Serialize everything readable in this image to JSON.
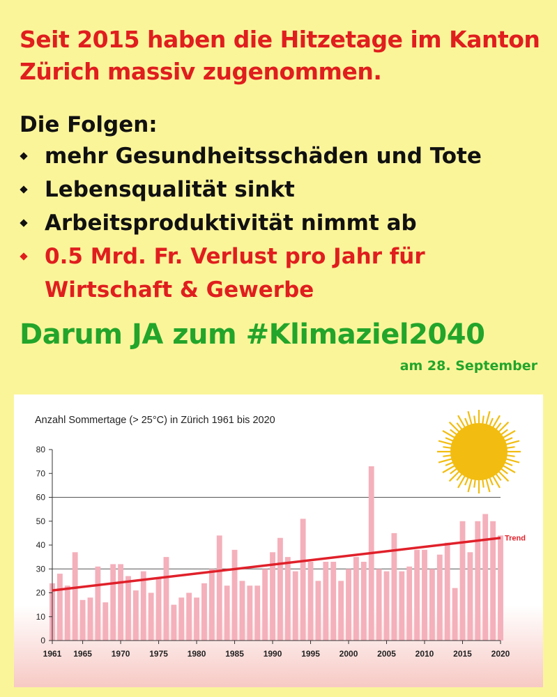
{
  "headline": "Seit 2015 haben die Hitzetage im Kanton Zürich massiv zugenommen.",
  "folgen": {
    "title": "Die Folgen:",
    "items": [
      {
        "text": "mehr Gesundheitsschäden und Tote",
        "red": false
      },
      {
        "text": "Lebensqualität sinkt",
        "red": false
      },
      {
        "text": "Arbeitsproduktivität nimmt ab",
        "red": false
      },
      {
        "text": "0.5 Mrd. Fr. Verlust pro Jahr für Wirtschaft & Gewerbe",
        "red": true
      }
    ]
  },
  "cta": "Darum JA zum #Klimaziel2040",
  "cta_date": "am 28. September",
  "colors": {
    "background": "#fbf59a",
    "headline": "#e01e1e",
    "cta": "#22a52a",
    "bar": "#f4b0bb",
    "trend": "#e0202a",
    "sun": "#f2bd10"
  },
  "chart_data": {
    "type": "bar",
    "title": "Anzahl Sommertage (> 25°C) in Zürich 1961 bis 2020",
    "x": [
      1961,
      1962,
      1963,
      1964,
      1965,
      1966,
      1967,
      1968,
      1969,
      1970,
      1971,
      1972,
      1973,
      1974,
      1975,
      1976,
      1977,
      1978,
      1979,
      1980,
      1981,
      1982,
      1983,
      1984,
      1985,
      1986,
      1987,
      1988,
      1989,
      1990,
      1991,
      1992,
      1993,
      1994,
      1995,
      1996,
      1997,
      1998,
      1999,
      2000,
      2001,
      2002,
      2003,
      2004,
      2005,
      2006,
      2007,
      2008,
      2009,
      2010,
      2011,
      2012,
      2013,
      2014,
      2015,
      2016,
      2017,
      2018,
      2019,
      2020
    ],
    "values": [
      24,
      28,
      23,
      37,
      17,
      18,
      31,
      16,
      32,
      32,
      27,
      21,
      29,
      20,
      26,
      35,
      15,
      18,
      20,
      18,
      24,
      30,
      44,
      23,
      38,
      25,
      23,
      23,
      30,
      37,
      43,
      35,
      29,
      51,
      33,
      25,
      33,
      33,
      25,
      30,
      35,
      33,
      73,
      30,
      29,
      45,
      29,
      31,
      38,
      38,
      30,
      36,
      41,
      22,
      50,
      37,
      50,
      53,
      50,
      44
    ],
    "xticks": [
      1961,
      1965,
      1970,
      1975,
      1980,
      1985,
      1990,
      1995,
      2000,
      2005,
      2010,
      2015,
      2020
    ],
    "yticks": [
      0,
      10,
      20,
      30,
      40,
      50,
      60,
      70,
      80
    ],
    "ylim": [
      0,
      80
    ],
    "gridlines": [
      30,
      60
    ],
    "trend": {
      "label": "Trend",
      "start": 21,
      "end": 43
    }
  }
}
